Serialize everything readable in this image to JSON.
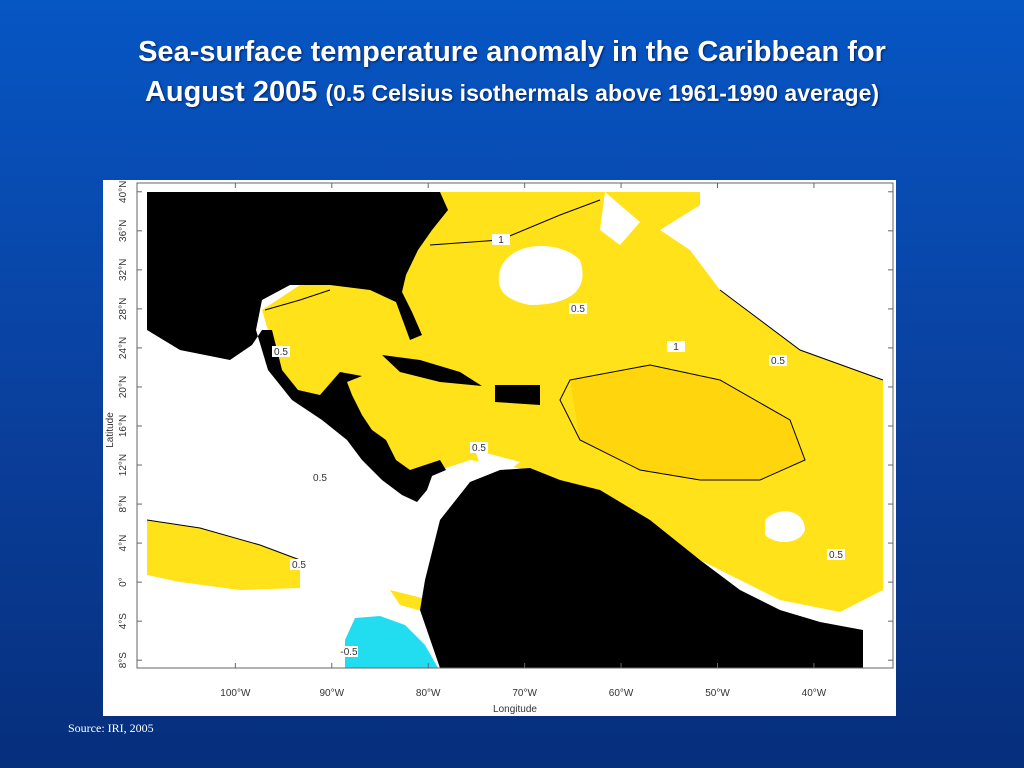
{
  "title_lines": [
    "Sea-surface temperature anomaly in the Caribbean for",
    "August 2005"
  ],
  "subtitle": "(0.5 Celsius isothermals above 1961-1990 average)",
  "map": {
    "xlabel": "Longitude",
    "ylabel": "Latitude",
    "xlim": [
      -110.2,
      -31.8
    ],
    "ylim": [
      -8.8,
      40.9
    ],
    "xticks": [
      {
        "value": -100,
        "label": "100°W"
      },
      {
        "value": -90,
        "label": "90°W"
      },
      {
        "value": -80,
        "label": "80°W"
      },
      {
        "value": -70,
        "label": "70°W"
      },
      {
        "value": -60,
        "label": "60°W"
      },
      {
        "value": -50,
        "label": "50°W"
      },
      {
        "value": -40,
        "label": "40°W"
      }
    ],
    "yticks": [
      {
        "value": 40,
        "label": "40°N"
      },
      {
        "value": 36,
        "label": "36°N"
      },
      {
        "value": 32,
        "label": "32°N"
      },
      {
        "value": 28,
        "label": "28°N"
      },
      {
        "value": 24,
        "label": "24°N"
      },
      {
        "value": 20,
        "label": "20°N"
      },
      {
        "value": 16,
        "label": "16°N"
      },
      {
        "value": 12,
        "label": "12°N"
      },
      {
        "value": 8,
        "label": "8°N"
      },
      {
        "value": 4,
        "label": "4°N"
      },
      {
        "value": 0,
        "label": "0°"
      },
      {
        "value": -4,
        "label": "4°S"
      },
      {
        "value": -8,
        "label": "8°S"
      }
    ],
    "contour_labels": [
      "1",
      "0.5",
      "0.5",
      "1",
      "0.5",
      "0.5",
      "0.5",
      "0.5",
      "0.5",
      "-0.5"
    ]
  },
  "source": "Source: IRI, 2005"
}
